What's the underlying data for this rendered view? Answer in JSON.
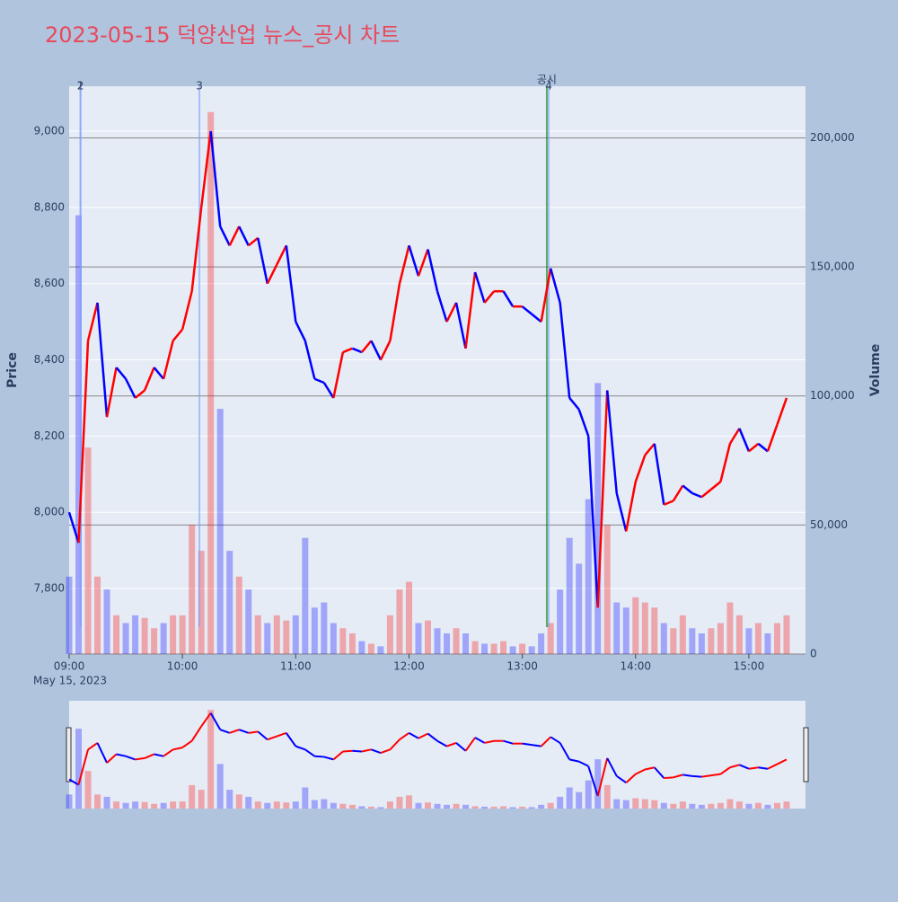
{
  "chart_data": {
    "type": "line",
    "title": "2023-05-15 덕양산업 뉴스_공시 차트",
    "x_date_label": "May 15, 2023",
    "ylabel": "Price",
    "y2label": "Volume",
    "x": [
      "09:00",
      "09:05",
      "09:10",
      "09:15",
      "09:20",
      "09:25",
      "09:30",
      "09:35",
      "09:40",
      "09:45",
      "09:50",
      "09:55",
      "10:00",
      "10:05",
      "10:10",
      "10:15",
      "10:20",
      "10:25",
      "10:30",
      "10:35",
      "10:40",
      "10:45",
      "10:50",
      "10:55",
      "11:00",
      "11:05",
      "11:10",
      "11:15",
      "11:20",
      "11:25",
      "11:30",
      "11:35",
      "11:40",
      "11:45",
      "11:50",
      "11:55",
      "12:00",
      "12:05",
      "12:10",
      "12:15",
      "12:20",
      "12:25",
      "12:30",
      "12:35",
      "12:40",
      "12:45",
      "12:50",
      "12:55",
      "13:00",
      "13:05",
      "13:10",
      "13:15",
      "13:20",
      "13:25",
      "13:30",
      "13:35",
      "13:40",
      "13:45",
      "13:50",
      "13:55",
      "14:00",
      "14:05",
      "14:10",
      "14:15",
      "14:20",
      "14:25",
      "14:30",
      "14:35",
      "14:40",
      "14:45",
      "14:50",
      "14:55",
      "15:00",
      "15:05",
      "15:10",
      "15:15",
      "15:20"
    ],
    "xlim": [
      "09:00",
      "15:30"
    ],
    "xticks": [
      "09:00",
      "10:00",
      "11:00",
      "12:00",
      "13:00",
      "14:00",
      "15:00"
    ],
    "series": [
      {
        "up_color": "red",
        "down_color": "blue",
        "values": [
          8000,
          7920,
          8450,
          8550,
          8250,
          8380,
          8350,
          8300,
          8320,
          8380,
          8350,
          8450,
          8480,
          8580,
          8800,
          9000,
          8750,
          8700,
          8750,
          8700,
          8720,
          8600,
          8650,
          8700,
          8500,
          8450,
          8350,
          8340,
          8300,
          8420,
          8430,
          8420,
          8450,
          8400,
          8450,
          8600,
          8700,
          8620,
          8690,
          8580,
          8500,
          8550,
          8430,
          8630,
          8550,
          8580,
          8580,
          8540,
          8540,
          8520,
          8500,
          8640,
          8550,
          8300,
          8270,
          8200,
          7750,
          8320,
          8050,
          7950,
          8080,
          8150,
          8180,
          8020,
          8030,
          8070,
          8050,
          8040,
          8060,
          8080,
          8180,
          8220,
          8160,
          8180,
          8160,
          8230,
          8300
        ]
      },
      {
        "axis": "y2",
        "values": [
          30000,
          170000,
          80000,
          30000,
          25000,
          15000,
          12000,
          15000,
          14000,
          10000,
          12000,
          15000,
          15000,
          50000,
          40000,
          210000,
          95000,
          40000,
          30000,
          25000,
          15000,
          12000,
          15000,
          13000,
          15000,
          45000,
          18000,
          20000,
          12000,
          10000,
          8000,
          5000,
          4000,
          3000,
          15000,
          25000,
          28000,
          12000,
          13000,
          10000,
          8000,
          10000,
          8000,
          5000,
          4000,
          4000,
          5000,
          3000,
          4000,
          3000,
          8000,
          12000,
          25000,
          45000,
          35000,
          60000,
          105000,
          50000,
          20000,
          18000,
          22000,
          20000,
          18000,
          12000,
          10000,
          15000,
          10000,
          8000,
          10000,
          12000,
          20000,
          15000,
          10000,
          12000,
          8000,
          12000,
          15000
        ]
      }
    ],
    "ylim": [
      7628,
      9118
    ],
    "yticks": [
      {
        "value": 7800,
        "label": "7,800"
      },
      {
        "value": 8000,
        "label": "8,000"
      },
      {
        "value": 8200,
        "label": "8,200"
      },
      {
        "value": 8400,
        "label": "8,400"
      },
      {
        "value": 8600,
        "label": "8,600"
      },
      {
        "value": 8800,
        "label": "8,800"
      },
      {
        "value": 9000,
        "label": "9,000"
      }
    ],
    "y2lim": [
      0,
      220000
    ],
    "y2ticks": [
      0,
      {
        "value": 50000,
        "label": "50,000"
      },
      {
        "value": 100000,
        "label": "100,000"
      },
      {
        "value": 150000,
        "label": "150,000"
      },
      {
        "value": 200000,
        "label": "200,000"
      }
    ],
    "annotations": [
      {
        "x": "09:06",
        "label": "1",
        "color": "#7f9fff"
      },
      {
        "x": "09:06",
        "label": "2",
        "color": "#7f9fff"
      },
      {
        "x": "10:09",
        "label": "3",
        "color": "#7f9fff"
      },
      {
        "x": "13:13",
        "label": "공시",
        "color": "green"
      },
      {
        "x": "13:14",
        "label": "4",
        "color": "#7f9fff"
      }
    ]
  }
}
